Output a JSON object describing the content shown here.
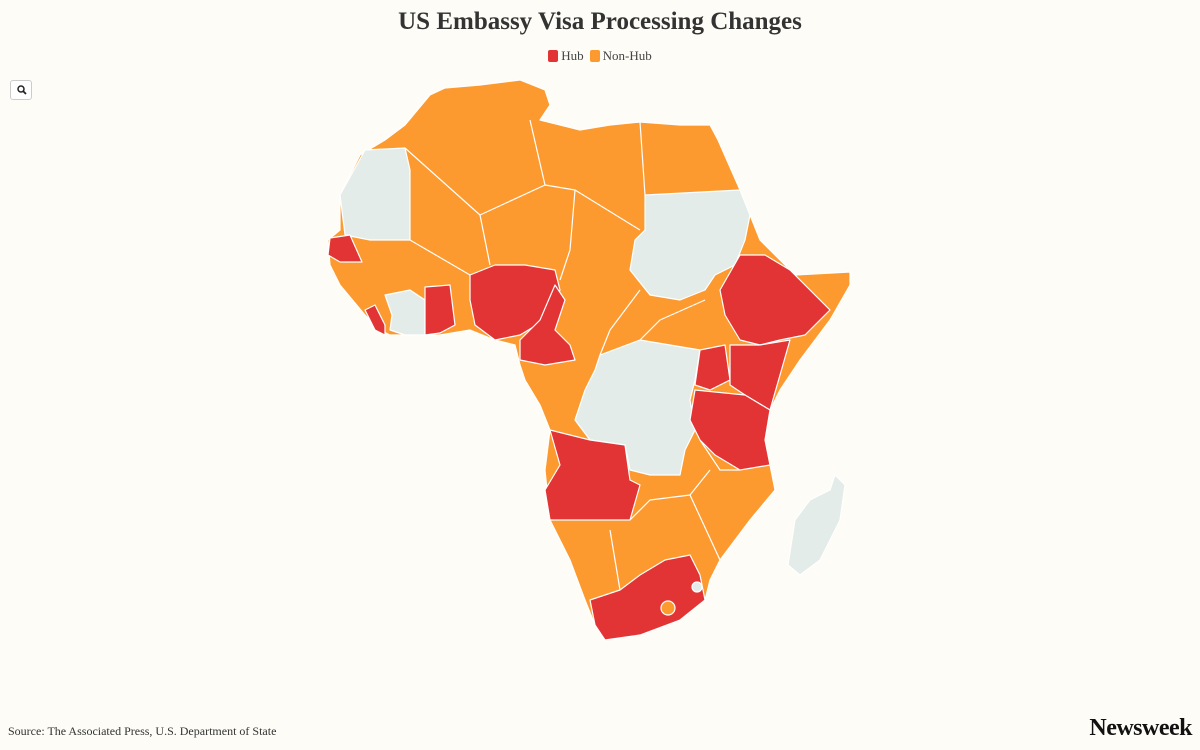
{
  "header": {
    "title": "US Embassy Visa Processing Changes"
  },
  "legend": [
    {
      "label": "Hub",
      "color": "#e23434"
    },
    {
      "label": "Non-Hub",
      "color": "#fc9a30"
    }
  ],
  "footer": {
    "source": "Source: The Associated Press, U.S. Department of State",
    "logo": "Newsweek"
  }
}
